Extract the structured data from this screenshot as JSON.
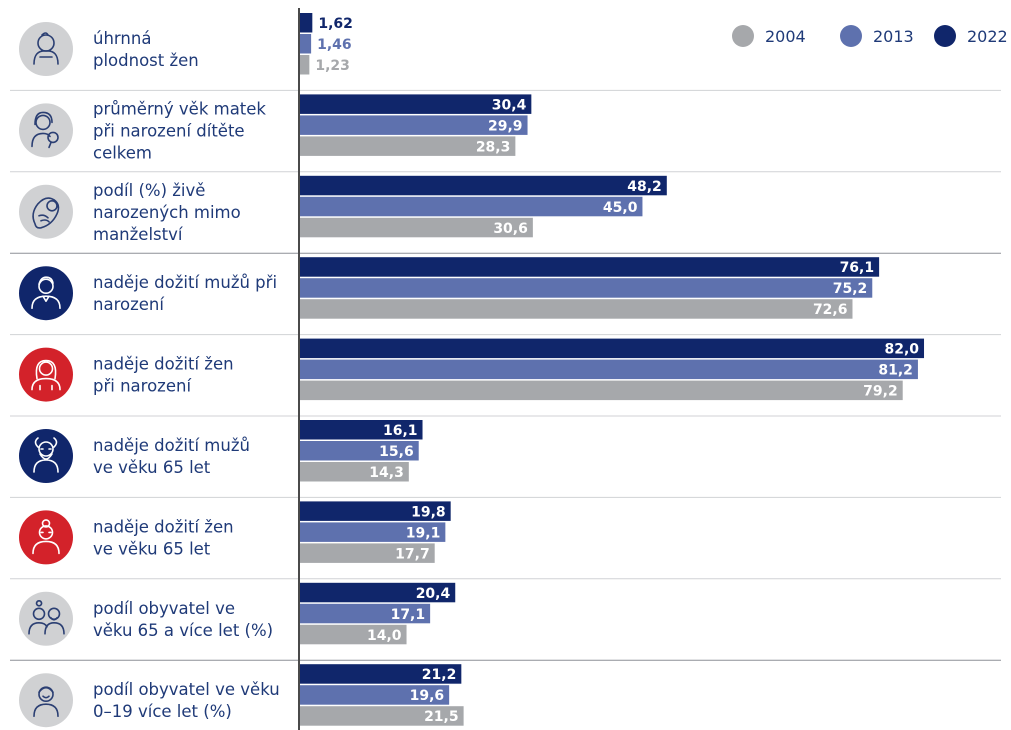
{
  "colors": {
    "series_2004": "#a6a8ab",
    "series_2013": "#5e71ae",
    "series_2022": "#10266b",
    "icon_grey": "#d0d1d3",
    "icon_blue": "#10266b",
    "icon_red": "#d3222a",
    "label_text": "#1f3a78"
  },
  "chart_data": {
    "type": "bar",
    "orientation": "horizontal",
    "legend_position": "top-right",
    "grid": false,
    "series_names": [
      "2004",
      "2013",
      "2022"
    ],
    "categories": [
      {
        "label_lines": [
          "úhrnná",
          "plodnost žen"
        ],
        "icon": "baby-icon",
        "icon_color": "grey",
        "values": {
          "2022": 1.62,
          "2013": 1.46,
          "2004": 1.23
        },
        "value_labels": {
          "2022": "1,62",
          "2013": "1,46",
          "2004": "1,23"
        },
        "labels_outside": true
      },
      {
        "label_lines": [
          "průměrný věk matek",
          "při narození dítěte",
          "celkem"
        ],
        "icon": "mother-with-baby-icon",
        "icon_color": "grey",
        "values": {
          "2022": 30.4,
          "2013": 29.9,
          "2004": 28.3
        },
        "value_labels": {
          "2022": "30,4",
          "2013": "29,9",
          "2004": "28,3"
        }
      },
      {
        "label_lines": [
          "podíl (%) živě",
          "narozených mimo",
          "manželství"
        ],
        "icon": "swaddled-baby-icon",
        "icon_color": "grey",
        "values": {
          "2022": 48.2,
          "2013": 45.0,
          "2004": 30.6
        },
        "value_labels": {
          "2022": "48,2",
          "2013": "45,0",
          "2004": "30,6"
        }
      },
      {
        "label_lines": [
          "naděje dožití mužů při",
          "narození"
        ],
        "icon": "man-icon",
        "icon_color": "blue",
        "values": {
          "2022": 76.1,
          "2013": 75.2,
          "2004": 72.6
        },
        "value_labels": {
          "2022": "76,1",
          "2013": "75,2",
          "2004": "72,6"
        }
      },
      {
        "label_lines": [
          "naděje dožití žen",
          "při narození"
        ],
        "icon": "woman-icon",
        "icon_color": "red",
        "values": {
          "2022": 82.0,
          "2013": 81.2,
          "2004": 79.2
        },
        "value_labels": {
          "2022": "82,0",
          "2013": "81,2",
          "2004": "79,2"
        }
      },
      {
        "label_lines": [
          "naděje dožití mužů",
          "ve věku 65 let"
        ],
        "icon": "old-man-icon",
        "icon_color": "blue",
        "values": {
          "2022": 16.1,
          "2013": 15.6,
          "2004": 14.3
        },
        "value_labels": {
          "2022": "16,1",
          "2013": "15,6",
          "2004": "14,3"
        }
      },
      {
        "label_lines": [
          "naděje dožití žen",
          "ve věku 65 let"
        ],
        "icon": "old-woman-icon",
        "icon_color": "red",
        "values": {
          "2022": 19.8,
          "2013": 19.1,
          "2004": 17.7
        },
        "value_labels": {
          "2022": "19,8",
          "2013": "19,1",
          "2004": "17,7"
        }
      },
      {
        "label_lines": [
          "podíl obyvatel ve",
          "věku 65 a více let (%)"
        ],
        "icon": "elderly-couple-icon",
        "icon_color": "grey",
        "values": {
          "2022": 20.4,
          "2013": 17.1,
          "2004": 14.0
        },
        "value_labels": {
          "2022": "20,4",
          "2013": "17,1",
          "2004": "14,0"
        }
      },
      {
        "label_lines": [
          "podíl obyvatel ve věku",
          "0–19 více let (%)"
        ],
        "icon": "child-icon",
        "icon_color": "grey",
        "values": {
          "2022": 21.2,
          "2013": 19.6,
          "2004": 21.5
        },
        "value_labels": {
          "2022": "21,2",
          "2013": "19,6",
          "2004": "21,5"
        }
      }
    ]
  }
}
